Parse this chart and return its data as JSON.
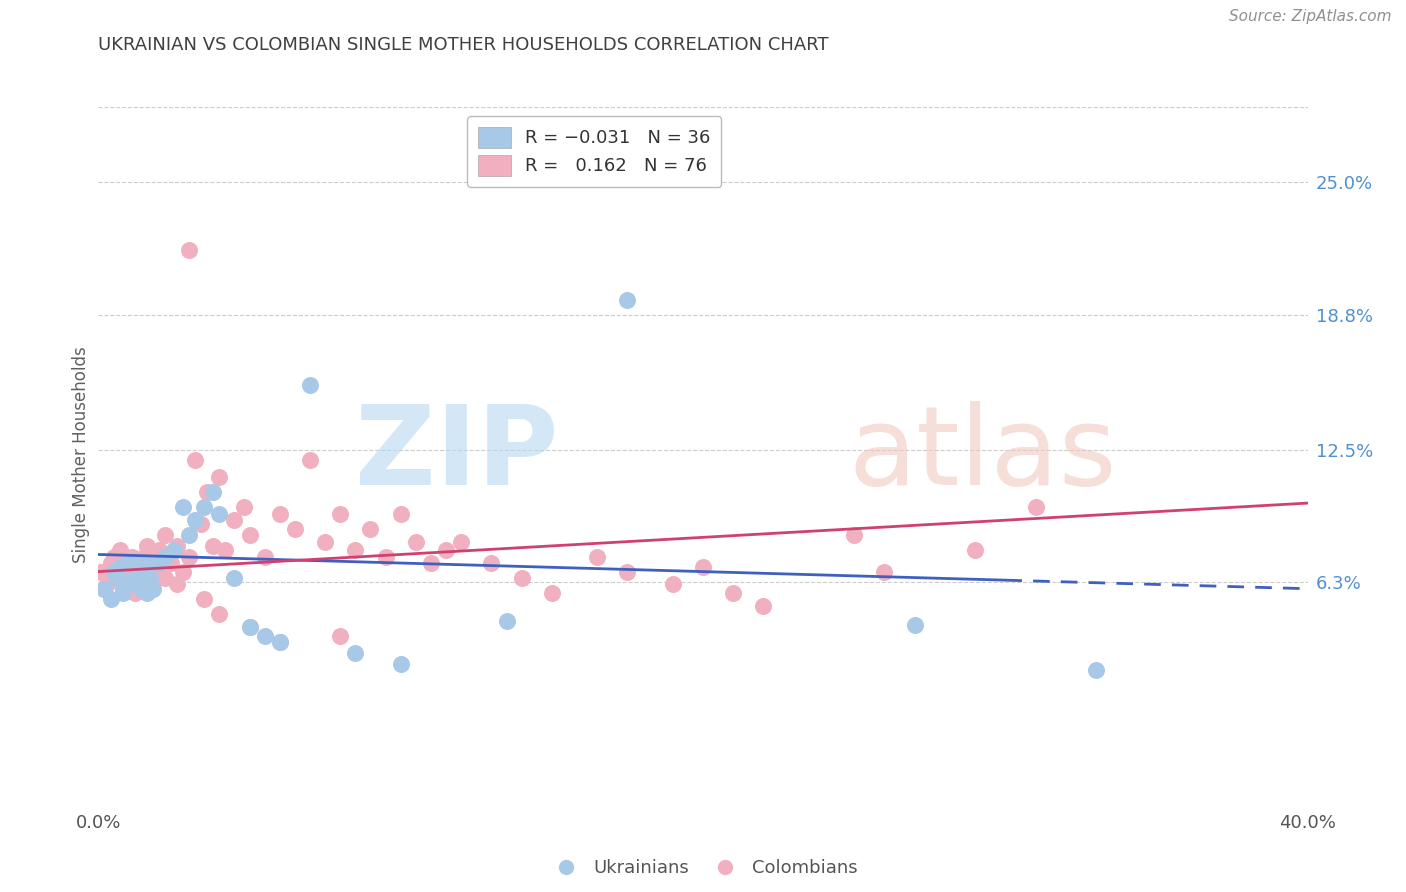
{
  "title": "UKRAINIAN VS COLOMBIAN SINGLE MOTHER HOUSEHOLDS CORRELATION CHART",
  "source": "Source: ZipAtlas.com",
  "ylabel": "Single Mother Households",
  "ytick_labels": [
    "25.0%",
    "18.8%",
    "12.5%",
    "6.3%"
  ],
  "ytick_values": [
    0.25,
    0.188,
    0.125,
    0.063
  ],
  "xlim": [
    0.0,
    0.4
  ],
  "ylim": [
    -0.04,
    0.285
  ],
  "blue_color": "#A8C8E8",
  "pink_color": "#F0B0C0",
  "blue_line_color": "#4060C0",
  "pink_line_color": "#D04070",
  "title_color": "#404040",
  "source_color": "#909090",
  "right_tick_color": "#5090D0",
  "background_color": "#FFFFFF",
  "grid_color": "#CCCCCC",
  "ukrainians_x": [
    0.002,
    0.004,
    0.005,
    0.006,
    0.007,
    0.008,
    0.009,
    0.01,
    0.011,
    0.012,
    0.013,
    0.014,
    0.015,
    0.016,
    0.017,
    0.018,
    0.02,
    0.022,
    0.025,
    0.028,
    0.03,
    0.032,
    0.035,
    0.038,
    0.04,
    0.045,
    0.05,
    0.055,
    0.06,
    0.07,
    0.085,
    0.1,
    0.135,
    0.175,
    0.27,
    0.33
  ],
  "ukrainians_y": [
    0.06,
    0.055,
    0.068,
    0.065,
    0.07,
    0.058,
    0.062,
    0.072,
    0.063,
    0.065,
    0.068,
    0.06,
    0.072,
    0.058,
    0.065,
    0.06,
    0.072,
    0.075,
    0.078,
    0.098,
    0.085,
    0.092,
    0.098,
    0.105,
    0.095,
    0.065,
    0.042,
    0.038,
    0.035,
    0.155,
    0.03,
    0.025,
    0.045,
    0.195,
    0.043,
    0.022
  ],
  "colombians_x": [
    0.001,
    0.003,
    0.004,
    0.005,
    0.006,
    0.007,
    0.008,
    0.009,
    0.01,
    0.011,
    0.012,
    0.013,
    0.014,
    0.015,
    0.016,
    0.017,
    0.018,
    0.019,
    0.02,
    0.022,
    0.024,
    0.026,
    0.028,
    0.03,
    0.032,
    0.034,
    0.036,
    0.038,
    0.04,
    0.042,
    0.045,
    0.048,
    0.05,
    0.055,
    0.06,
    0.065,
    0.07,
    0.075,
    0.08,
    0.085,
    0.09,
    0.095,
    0.1,
    0.105,
    0.11,
    0.115,
    0.12,
    0.13,
    0.14,
    0.15,
    0.165,
    0.175,
    0.19,
    0.2,
    0.21,
    0.22,
    0.25,
    0.26,
    0.29,
    0.31,
    0.002,
    0.004,
    0.006,
    0.008,
    0.01,
    0.012,
    0.015,
    0.018,
    0.022,
    0.026,
    0.03,
    0.035,
    0.04,
    0.05,
    0.06,
    0.08
  ],
  "colombians_y": [
    0.068,
    0.062,
    0.072,
    0.075,
    0.065,
    0.078,
    0.06,
    0.07,
    0.068,
    0.075,
    0.065,
    0.072,
    0.068,
    0.075,
    0.08,
    0.068,
    0.072,
    0.065,
    0.078,
    0.085,
    0.072,
    0.08,
    0.068,
    0.075,
    0.12,
    0.09,
    0.105,
    0.08,
    0.112,
    0.078,
    0.092,
    0.098,
    0.085,
    0.075,
    0.095,
    0.088,
    0.12,
    0.082,
    0.095,
    0.078,
    0.088,
    0.075,
    0.095,
    0.082,
    0.072,
    0.078,
    0.082,
    0.072,
    0.065,
    0.058,
    0.075,
    0.068,
    0.062,
    0.07,
    0.058,
    0.052,
    0.085,
    0.068,
    0.078,
    0.098,
    0.06,
    0.065,
    0.068,
    0.072,
    0.062,
    0.058,
    0.068,
    0.072,
    0.065,
    0.062,
    0.218,
    0.055,
    0.048,
    0.042,
    0.035,
    0.038
  ]
}
